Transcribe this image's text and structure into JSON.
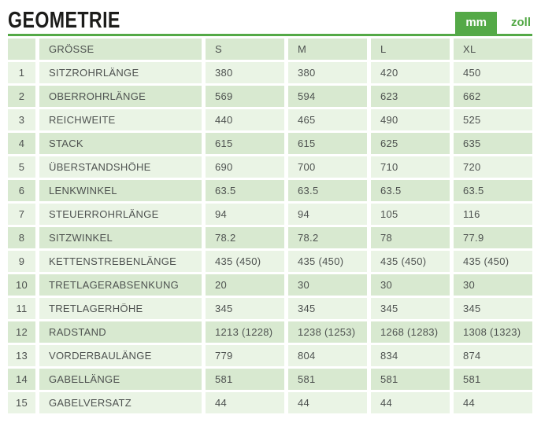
{
  "page": {
    "title": "GEOMETRIE"
  },
  "unit_toggle": {
    "active_label": "mm",
    "inactive_label": "zoll"
  },
  "colors": {
    "accent_green": "#54a947",
    "row_light": "#eaf4e5",
    "row_dark": "#d8e9d0",
    "cell_text": "#4e5250",
    "title_text": "#1c1c1a"
  },
  "table": {
    "columns": [
      "GRÖSSE",
      "S",
      "M",
      "L",
      "XL"
    ],
    "rows": [
      {
        "num": "1",
        "label": "SITZROHRLÄNGE",
        "values": [
          "380",
          "380",
          "420",
          "450"
        ]
      },
      {
        "num": "2",
        "label": "OBERROHRLÄNGE",
        "values": [
          "569",
          "594",
          "623",
          "662"
        ]
      },
      {
        "num": "3",
        "label": "REICHWEITE",
        "values": [
          "440",
          "465",
          "490",
          "525"
        ]
      },
      {
        "num": "4",
        "label": "STACK",
        "values": [
          "615",
          "615",
          "625",
          "635"
        ]
      },
      {
        "num": "5",
        "label": "ÜBERSTANDSHÖHE",
        "values": [
          "690",
          "700",
          "710",
          "720"
        ]
      },
      {
        "num": "6",
        "label": "LENKWINKEL",
        "values": [
          "63.5",
          "63.5",
          "63.5",
          "63.5"
        ]
      },
      {
        "num": "7",
        "label": "STEUERROHRLÄNGE",
        "values": [
          "94",
          "94",
          "105",
          "116"
        ]
      },
      {
        "num": "8",
        "label": "SITZWINKEL",
        "values": [
          "78.2",
          "78.2",
          "78",
          "77.9"
        ]
      },
      {
        "num": "9",
        "label": "KETTENSTREBENLÄNGE",
        "values": [
          "435 (450)",
          "435 (450)",
          "435 (450)",
          "435 (450)"
        ]
      },
      {
        "num": "10",
        "label": "TRETLAGERABSENKUNG",
        "values": [
          "20",
          "30",
          "30",
          "30"
        ]
      },
      {
        "num": "11",
        "label": "TRETLAGERHÖHE",
        "values": [
          "345",
          "345",
          "345",
          "345"
        ]
      },
      {
        "num": "12",
        "label": "RADSTAND",
        "values": [
          "1213 (1228)",
          "1238 (1253)",
          "1268 (1283)",
          "1308 (1323)"
        ]
      },
      {
        "num": "13",
        "label": "VORDERBAULÄNGE",
        "values": [
          "779",
          "804",
          "834",
          "874"
        ]
      },
      {
        "num": "14",
        "label": "GABELLÄNGE",
        "values": [
          "581",
          "581",
          "581",
          "581"
        ]
      },
      {
        "num": "15",
        "label": "GABELVERSATZ",
        "values": [
          "44",
          "44",
          "44",
          "44"
        ]
      }
    ]
  }
}
